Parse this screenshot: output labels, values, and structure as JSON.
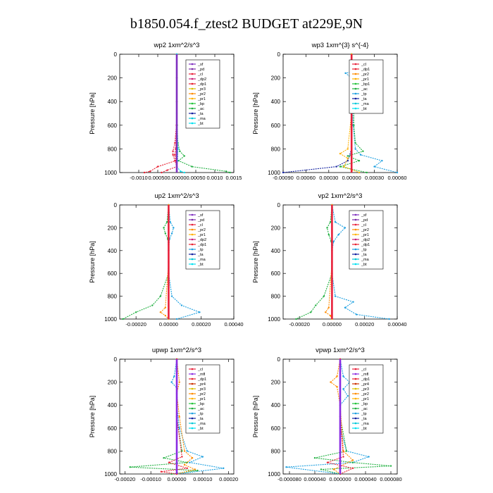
{
  "title": "b1850.054.f_ztest2  BUDGET at229E,9N",
  "colors": {
    "sf": "#7f2fbf",
    "pd": "#7a2aa8",
    "cl": "#e8203a",
    "dp1": "#e82030",
    "dp2": "#c82078",
    "pr1": "#ffb000",
    "pr2": "#ff8c00",
    "pr3": "#d8c000",
    "pr4": "#cc3000",
    "mf": "#8a2be2",
    "bp": "#22c33a",
    "ac": "#20b040",
    "tp": "#1ea0e0",
    "ta": "#1020a0",
    "ma": "#00c8d8",
    "bt": "#00e0f0"
  },
  "chart_data": [
    {
      "type": "line",
      "title": "wp2   1xm^2/s^3",
      "ylabel": "Pressure [hPa]",
      "xlim": [
        -0.0015,
        0.0015
      ],
      "ylim": [
        1000,
        0
      ],
      "x_ticks": [
        "-0.0010",
        "0.00050",
        "0.00000",
        "0.00050",
        "0.0010",
        "0.0015"
      ],
      "x_tick_values": [
        -0.001,
        -0.0005,
        0.0,
        0.0005,
        0.001,
        0.0015
      ],
      "y_ticks": [
        "0",
        "200",
        "400",
        "600",
        "800",
        "1000"
      ],
      "y_tick_values": [
        0,
        200,
        400,
        600,
        800,
        1000
      ],
      "legend": [
        "_sf",
        "_pd",
        "_cl",
        "_dp2",
        "_dp1",
        "_pr3",
        "_pr2",
        "_pr1",
        "_bp",
        "_ac",
        "_ta",
        "_ma",
        "_bt"
      ],
      "series": [
        {
          "name": "_cl",
          "color_key": "cl",
          "y": [
            0,
            200,
            400,
            600,
            750,
            820,
            850,
            900,
            950,
            980,
            1000
          ],
          "x": [
            0,
            0,
            0,
            -1e-05,
            -5e-05,
            -0.0001,
            -0.0001,
            -5e-05,
            0.0,
            -0.00025,
            -0.0004
          ]
        },
        {
          "name": "_dp1",
          "color_key": "dp1",
          "y": [
            0,
            200,
            400,
            600,
            800,
            850,
            900,
            950,
            990,
            1000
          ],
          "x": [
            0,
            0,
            0,
            0,
            -3e-05,
            -5e-05,
            -3e-05,
            -0.0005,
            -0.0007,
            -0.00085
          ]
        },
        {
          "name": "_ac",
          "color_key": "ac",
          "y": [
            0,
            200,
            400,
            600,
            750,
            820,
            860,
            900,
            950,
            990,
            1000
          ],
          "x": [
            0,
            0,
            0,
            1e-05,
            3e-05,
            8e-05,
            0.0002,
            5e-05,
            0.0004,
            0.0013,
            0.0014
          ]
        },
        {
          "name": "_bt",
          "color_key": "bt",
          "y": [
            0,
            500,
            800,
            900,
            950,
            990,
            1000
          ],
          "x": [
            0,
            0,
            3e-05,
            2e-05,
            0.0,
            0.0001,
            0.0002
          ]
        },
        {
          "name": "_sf",
          "color_key": "sf",
          "y": [
            0,
            500,
            1000
          ],
          "x": [
            0,
            0,
            0
          ]
        }
      ]
    },
    {
      "type": "line",
      "title": "wp3   1xm^{3} s^{-4}",
      "ylabel": "Pressure [hPa]",
      "xlim": [
        -0.0009,
        0.0006
      ],
      "ylim": [
        1000,
        0
      ],
      "x_ticks": [
        "-0.00090",
        "0.00060",
        "0.00030",
        "0.00000",
        "0.00030",
        "0.00060"
      ],
      "x_tick_values": [
        -0.0009,
        -0.0006,
        -0.0003,
        0.0,
        0.0003,
        0.0006
      ],
      "y_ticks": [
        "0",
        "200",
        "400",
        "600",
        "800",
        "1000"
      ],
      "y_tick_values": [
        0,
        200,
        400,
        600,
        800,
        1000
      ],
      "legend": [
        "_cl",
        "_dp1",
        "_pr2",
        "_pr1",
        "_bp1",
        "_ac",
        "_tp",
        "_ta",
        "_ma",
        "_bt"
      ],
      "series": [
        {
          "name": "_tp",
          "color_key": "tp",
          "y": [
            0,
            100,
            140,
            160,
            200,
            400,
            600,
            800,
            850,
            900,
            950,
            1000
          ],
          "x": [
            0,
            0,
            8e-05,
            -8e-05,
            0.0,
            1e-05,
            2e-05,
            5e-05,
            0.00012,
            0.0004,
            0.0003,
            0.0006
          ]
        },
        {
          "name": "_ta",
          "color_key": "ta",
          "y": [
            0,
            800,
            900,
            950,
            1000
          ],
          "x": [
            0,
            0,
            -5e-05,
            -0.0002,
            -0.0009
          ]
        },
        {
          "name": "_ac",
          "color_key": "ac",
          "y": [
            0,
            200,
            400,
            600,
            750,
            820,
            860,
            900,
            950,
            1000
          ],
          "x": [
            0,
            2e-05,
            3e-05,
            3e-05,
            5e-05,
            0.00015,
            -5e-05,
            0.0001,
            -0.00015,
            0.0002
          ]
        },
        {
          "name": "_pr1",
          "color_key": "pr1",
          "y": [
            0,
            500,
            800,
            840,
            880,
            950,
            1000
          ],
          "x": [
            0,
            0,
            -5e-05,
            -0.00015,
            -5e-05,
            -0.0001,
            0.0001
          ]
        },
        {
          "name": "_cl",
          "color_key": "cl",
          "y": [
            0,
            500,
            1000
          ],
          "x": [
            0,
            0,
            0
          ]
        }
      ]
    },
    {
      "type": "line",
      "title": "up2   1xm^2/s^3",
      "ylabel": "Pressure [hPa]",
      "xlim": [
        -0.0003,
        0.0004
      ],
      "ylim": [
        1000,
        0
      ],
      "x_ticks": [
        "-0.00020",
        "0.00000",
        "0.00020",
        "0.00040"
      ],
      "x_tick_values": [
        -0.0002,
        0.0,
        0.0002,
        0.0004
      ],
      "y_ticks": [
        "0",
        "200",
        "400",
        "600",
        "800",
        "1000"
      ],
      "y_tick_values": [
        0,
        200,
        400,
        600,
        800,
        1000
      ],
      "legend": [
        "_sf",
        "_pd",
        "_cl",
        "_pr2",
        "_pr1",
        "_dp2",
        "_dp1",
        "_tp",
        "_ta",
        "_ma",
        "_bt"
      ],
      "series": [
        {
          "name": "_tp",
          "color_key": "tp",
          "y": [
            0,
            150,
            200,
            250,
            300,
            400,
            600,
            800,
            880,
            940,
            1000
          ],
          "x": [
            0,
            1e-05,
            3e-05,
            2e-05,
            5e-06,
            0.0,
            0.0,
            2e-05,
            8e-05,
            0.00019,
            5e-05
          ]
        },
        {
          "name": "_ac",
          "color_key": "ac",
          "y": [
            0,
            150,
            200,
            250,
            300,
            400,
            600,
            800,
            880,
            940,
            1000
          ],
          "x": [
            0,
            -1e-05,
            -3e-05,
            -2e-05,
            -5e-06,
            0.0,
            0.0,
            -5e-05,
            -0.0001,
            -0.0002,
            -0.00028
          ]
        },
        {
          "name": "_pr2",
          "color_key": "pr2",
          "y": [
            0,
            500,
            900,
            940,
            970,
            1000
          ],
          "x": [
            0,
            0,
            -2e-05,
            -5e-05,
            -2e-05,
            0.0
          ]
        },
        {
          "name": "_cl",
          "color_key": "cl",
          "y": [
            0,
            500,
            1000
          ],
          "x": [
            0,
            0,
            0
          ]
        }
      ]
    },
    {
      "type": "line",
      "title": "vp2   1xm^2/s^3",
      "ylabel": "Pressure [hPa]",
      "xlim": [
        -0.0003,
        0.0004
      ],
      "ylim": [
        1000,
        0
      ],
      "x_ticks": [
        "-0.00020",
        "0.00000",
        "0.00020",
        "0.00040"
      ],
      "x_tick_values": [
        -0.0002,
        0.0,
        0.0002,
        0.0004
      ],
      "y_ticks": [
        "0",
        "200",
        "400",
        "600",
        "800",
        "1000"
      ],
      "y_tick_values": [
        0,
        200,
        400,
        600,
        800,
        1000
      ],
      "legend": [
        "_sf",
        "_pd",
        "_cl",
        "_pr2",
        "_pr1",
        "_dp2",
        "_dp1",
        "_tp",
        "_ta",
        "_ma",
        "_bt"
      ],
      "series": [
        {
          "name": "_tp",
          "color_key": "tp",
          "y": [
            0,
            150,
            200,
            260,
            320,
            400,
            600,
            800,
            850,
            900,
            960,
            1000
          ],
          "x": [
            0,
            2e-05,
            8e-05,
            4e-05,
            1e-05,
            0.0,
            0.0,
            2e-05,
            0.00013,
            8e-05,
            0.00015,
            0.00035
          ]
        },
        {
          "name": "_ac",
          "color_key": "ac",
          "y": [
            0,
            150,
            200,
            260,
            320,
            400,
            600,
            800,
            880,
            940,
            1000
          ],
          "x": [
            0,
            -1e-05,
            -3e-05,
            -2e-05,
            -5e-06,
            0.0,
            0.0,
            -5e-05,
            -0.0001,
            -0.00013,
            -0.00022
          ]
        },
        {
          "name": "_pr2",
          "color_key": "pr2",
          "y": [
            0,
            500,
            900,
            940,
            970,
            1000
          ],
          "x": [
            0,
            0,
            -2e-05,
            -4e-05,
            -1e-05,
            0.0
          ]
        },
        {
          "name": "_cl",
          "color_key": "cl",
          "y": [
            0,
            500,
            1000
          ],
          "x": [
            0,
            0,
            0
          ]
        }
      ]
    },
    {
      "type": "line",
      "title": "upwp   1xm^2/s^3",
      "ylabel": "Pressure [hPa]",
      "xlim": [
        -0.00022,
        0.00022
      ],
      "ylim": [
        1000,
        0
      ],
      "x_ticks": [
        "-0.00020",
        "-0.00010",
        "0.00000",
        "0.00010",
        "0.00020"
      ],
      "x_tick_values": [
        -0.0002,
        -0.0001,
        0.0,
        0.0001,
        0.0002
      ],
      "y_ticks": [
        "0",
        "200",
        "400",
        "600",
        "800",
        "1000"
      ],
      "y_tick_values": [
        0,
        200,
        400,
        600,
        800,
        1000
      ],
      "legend": [
        "_cl",
        "_mfl",
        "_dp1",
        "_pr4",
        "_pr3",
        "_pr2",
        "_pr1",
        "_bp",
        "_ac",
        "_tp",
        "_ta",
        "_ma",
        "_bt"
      ],
      "series": [
        {
          "name": "_tp",
          "color_key": "tp",
          "y": [
            0,
            150,
            200,
            250,
            400,
            600,
            800,
            850,
            900,
            950,
            1000
          ],
          "x": [
            0,
            -1e-05,
            -2e-05,
            0.0,
            0.0,
            1e-05,
            4e-05,
            0.0001,
            5e-05,
            0.00018,
            0.0
          ]
        },
        {
          "name": "_ac",
          "color_key": "ac",
          "y": [
            0,
            500,
            800,
            860,
            900,
            940,
            970,
            1000
          ],
          "x": [
            0,
            0,
            2e-05,
            -5e-05,
            4e-05,
            -0.00018,
            8e-05,
            -2e-05
          ]
        },
        {
          "name": "_pr2",
          "color_key": "pr2",
          "y": [
            0,
            200,
            300,
            500,
            800,
            860,
            920,
            960,
            1000
          ],
          "x": [
            0,
            1e-05,
            0.0,
            1e-05,
            3e-05,
            6e-05,
            3e-05,
            7e-05,
            0.0
          ]
        },
        {
          "name": "_dp1",
          "color_key": "dp1",
          "y": [
            0,
            500,
            850,
            900,
            950,
            980,
            1000
          ],
          "x": [
            0,
            0,
            2e-05,
            -3e-05,
            4e-05,
            -6e-05,
            0.0
          ]
        },
        {
          "name": "_cl",
          "color_key": "mf",
          "y": [
            0,
            500,
            1000
          ],
          "x": [
            0,
            0,
            0
          ]
        }
      ]
    },
    {
      "type": "line",
      "title": "vpwp   1xm^2/s^3",
      "ylabel": "Pressure [hPa]",
      "xlim": [
        -9e-05,
        9e-05
      ],
      "ylim": [
        1000,
        0
      ],
      "x_ticks": [
        "-0.000080",
        "0.000040",
        "0.000000",
        "0.000040",
        "0.000080"
      ],
      "x_tick_values": [
        -8e-05,
        -4e-05,
        0.0,
        4e-05,
        8e-05
      ],
      "y_ticks": [
        "0",
        "200",
        "400",
        "600",
        "800",
        "1000"
      ],
      "y_tick_values": [
        0,
        200,
        400,
        600,
        800,
        1000
      ],
      "legend": [
        "_cl",
        "_mfl",
        "_dp1",
        "_pr4",
        "_pr3",
        "_pr2",
        "_pr1",
        "_bp",
        "_ac",
        "_tp",
        "_ta",
        "_ma",
        "_bt"
      ],
      "series": [
        {
          "name": "_tp",
          "color_key": "tp",
          "y": [
            0,
            150,
            200,
            260,
            320,
            400,
            600,
            800,
            850,
            900,
            940,
            1000
          ],
          "x": [
            0,
            5e-06,
            1.5e-05,
            5e-06,
            1.2e-05,
            0.0,
            0.0,
            1e-05,
            4.5e-05,
            2e-05,
            -8.5e-05,
            0.0
          ]
        },
        {
          "name": "_ac",
          "color_key": "ac",
          "y": [
            0,
            500,
            800,
            860,
            900,
            930,
            960,
            1000
          ],
          "x": [
            0,
            0,
            1e-05,
            -4e-05,
            2e-05,
            8e-05,
            -3e-05,
            0.0
          ]
        },
        {
          "name": "_pr2",
          "color_key": "pr2",
          "y": [
            0,
            150,
            200,
            240,
            400,
            800,
            880,
            960,
            1000
          ],
          "x": [
            0,
            -5e-06,
            -1.5e-05,
            -5e-06,
            0.0,
            5e-06,
            2e-05,
            -1e-05,
            0.0
          ]
        },
        {
          "name": "_dp1",
          "color_key": "dp1",
          "y": [
            0,
            500,
            850,
            900,
            950,
            1000
          ],
          "x": [
            0,
            0,
            5e-06,
            -2e-05,
            2e-05,
            0.0
          ]
        },
        {
          "name": "_cl",
          "color_key": "mf",
          "y": [
            0,
            500,
            1000
          ],
          "x": [
            0,
            0,
            0
          ]
        }
      ]
    }
  ]
}
